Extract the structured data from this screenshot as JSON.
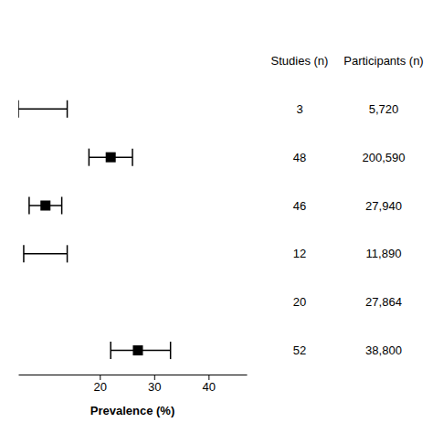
{
  "chart_data": {
    "type": "forest",
    "xlabel": "Prevalence (%)",
    "xlim": [
      5,
      47
    ],
    "xticks": [
      20,
      30,
      40
    ],
    "values": [
      null,
      22,
      10,
      null,
      null,
      27
    ],
    "ci_low": [
      5,
      18,
      7,
      6,
      null,
      22
    ],
    "ci_high": [
      14,
      26,
      13,
      14,
      null,
      33
    ],
    "color": "#000000",
    "columns": [
      {
        "name": "Studies (n)",
        "values": [
          3,
          48,
          46,
          12,
          20,
          52
        ]
      },
      {
        "name": "Participants (n)",
        "values": [
          5720,
          200590,
          27940,
          11890,
          27864,
          38800
        ],
        "value_labels": [
          "5,720",
          "200,590",
          "27,940",
          "11,890",
          "27,864",
          "38,800"
        ]
      }
    ]
  }
}
